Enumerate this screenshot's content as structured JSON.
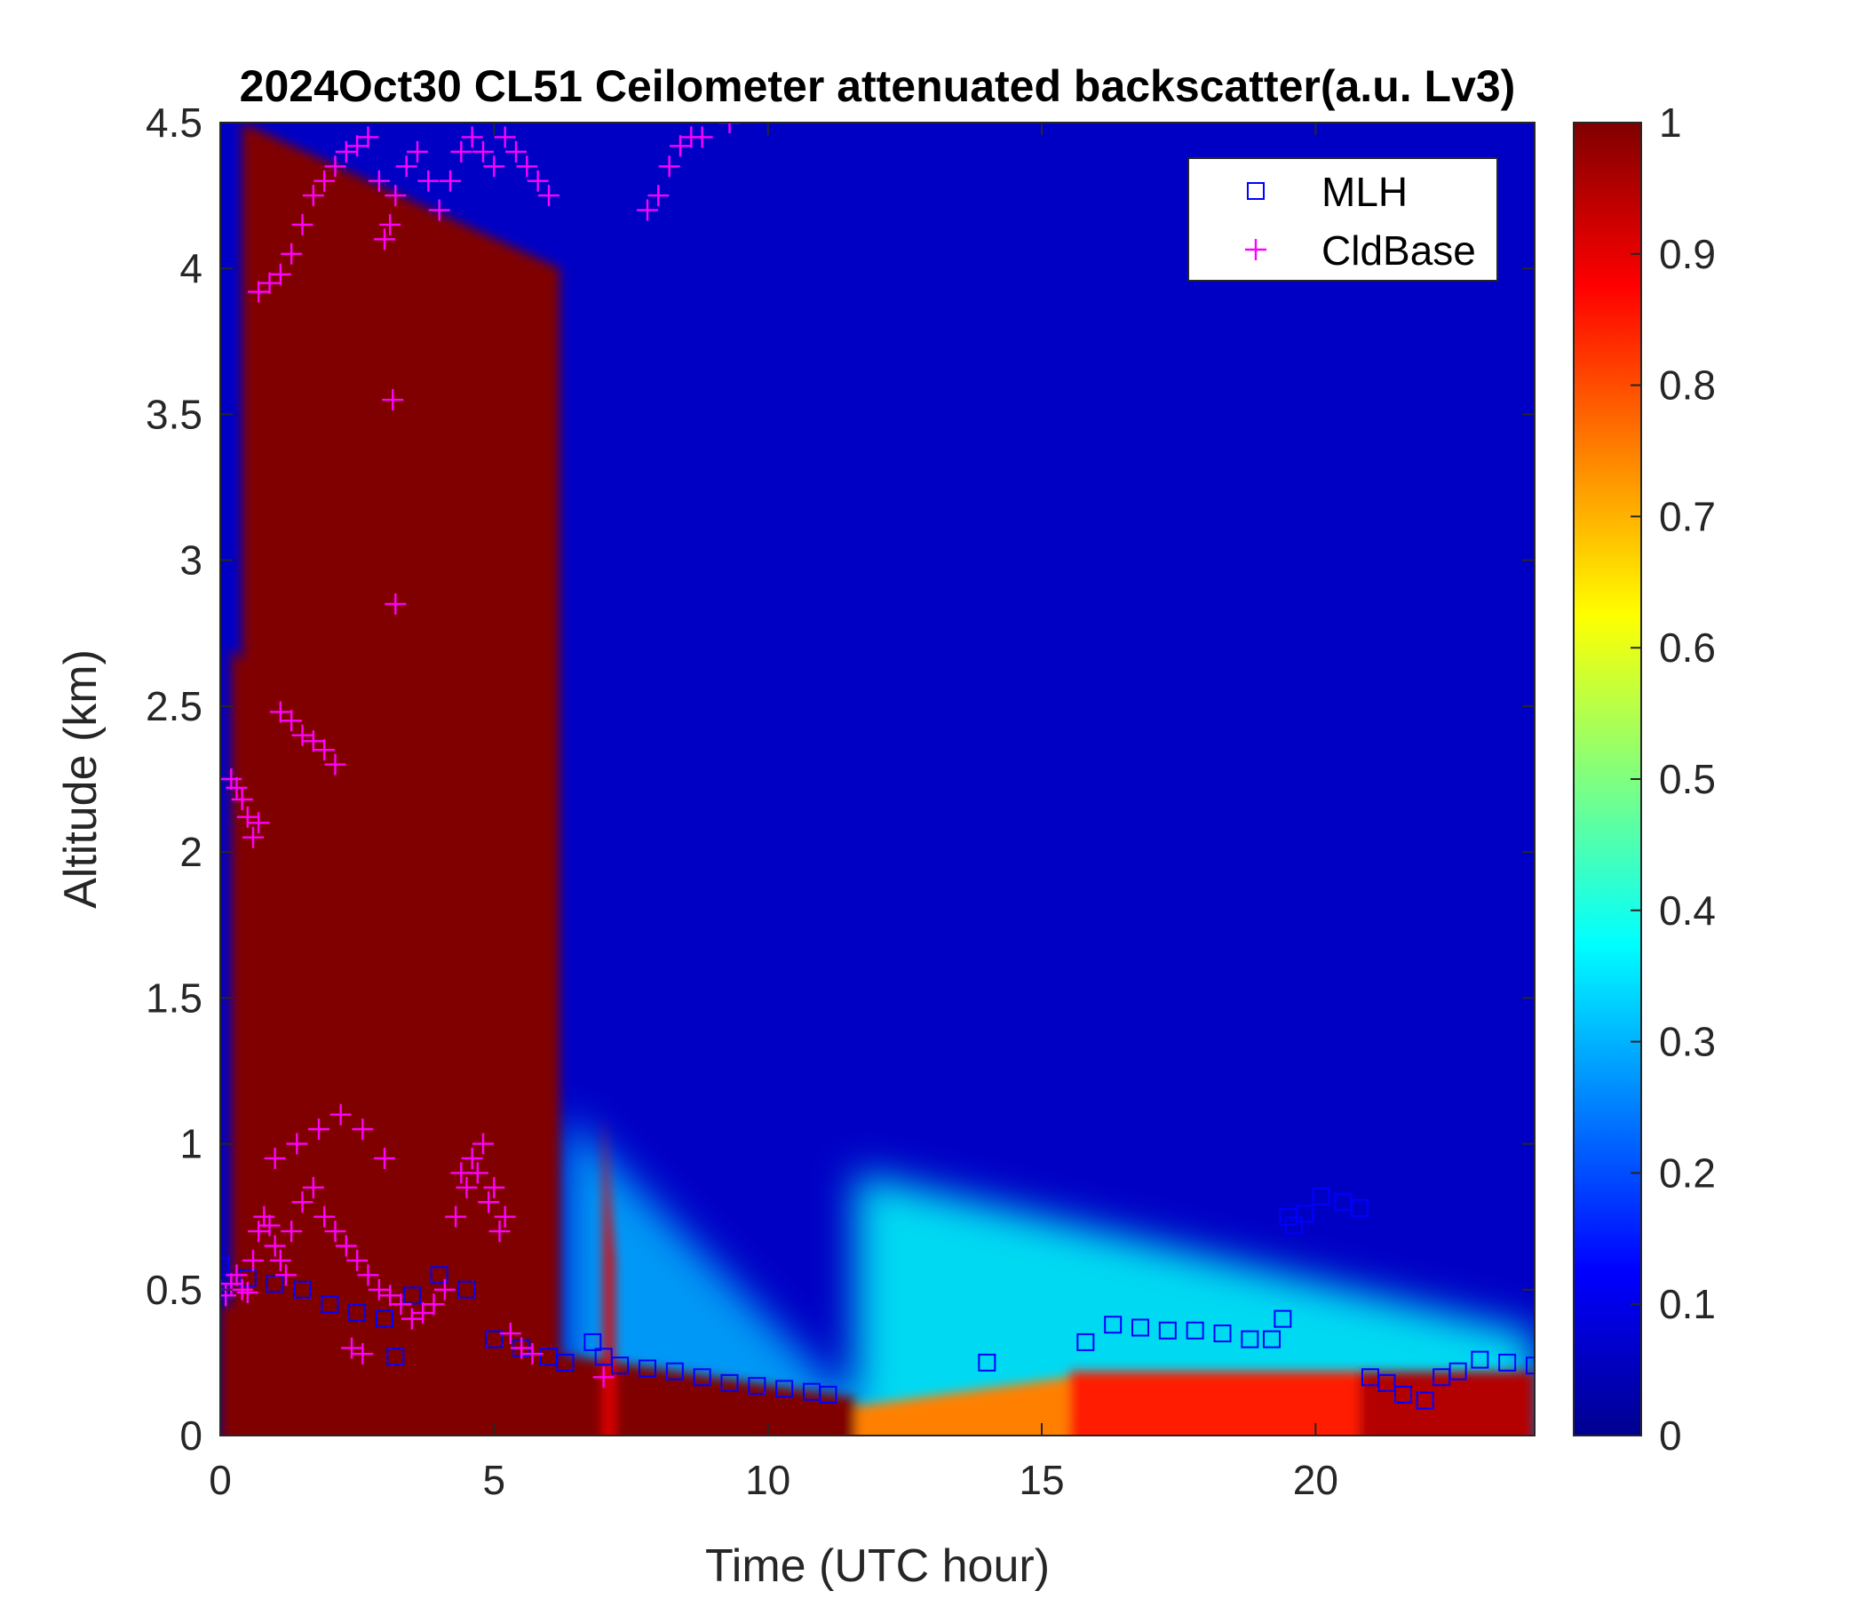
{
  "chart_data": {
    "type": "heatmap",
    "title": "2024Oct30 CL51 Ceilometer attenuated backscatter(a.u. Lv3)",
    "xlabel": "Time (UTC hour)",
    "ylabel": "Altitude (km)",
    "xlim": [
      0,
      24
    ],
    "ylim": [
      0,
      4.5
    ],
    "x_ticks": [
      0,
      5,
      10,
      15,
      20
    ],
    "y_ticks": [
      0,
      0.5,
      1,
      1.5,
      2,
      2.5,
      3,
      3.5,
      4,
      4.5
    ],
    "colorbar": {
      "colormap": "jet",
      "range": [
        0,
        1
      ],
      "ticks": [
        0,
        0.1,
        0.2,
        0.3,
        0.4,
        0.5,
        0.6,
        0.7,
        0.8,
        0.9,
        1
      ]
    },
    "legend": {
      "position": "top-right",
      "entries": [
        {
          "label": "MLH",
          "marker": "square",
          "color": "#0000ff"
        },
        {
          "label": "CldBase",
          "marker": "plus",
          "color": "#ff00ff"
        }
      ]
    },
    "features": [
      {
        "t": [
          0,
          11.6
        ],
        "h_top": [
          0.45,
          0.13
        ],
        "value": 1.0
      },
      {
        "t": [
          11.6,
          15.5
        ],
        "h_top": [
          0.1,
          0.2
        ],
        "value": 0.75
      },
      {
        "t": [
          15.5,
          20.8
        ],
        "h_top": [
          0.22,
          0.22
        ],
        "value": 0.85
      },
      {
        "t": [
          20.8,
          24
        ],
        "h_top": [
          0.22,
          0.22
        ],
        "value": 0.95
      },
      {
        "t": [
          6.3,
          11.6
        ],
        "h_top": [
          1.1,
          0.1
        ],
        "value": 0.3
      },
      {
        "t": [
          11.6,
          24
        ],
        "h_top": [
          0.9,
          0.35
        ],
        "value": 0.38
      },
      {
        "t": [
          0.4,
          6.2
        ],
        "h_top": [
          4.5,
          4.0
        ],
        "value": 1.0
      },
      {
        "t": [
          0.2,
          2.3
        ],
        "h_top": [
          2.7,
          2.2
        ],
        "value": 1.0
      },
      {
        "t": [
          3.3,
          3.5
        ],
        "h_top": [
          1.8,
          0.5
        ],
        "value": 1.0
      },
      {
        "t": [
          7.0,
          7.2
        ],
        "h_top": [
          1.1,
          0.6
        ],
        "value": 0.9
      }
    ],
    "series": [
      {
        "name": "MLH",
        "x": [
          0,
          0.5,
          1.0,
          1.5,
          2.0,
          2.5,
          3.0,
          3.2,
          3.5,
          4.0,
          4.5,
          5.0,
          5.5,
          6.0,
          6.3,
          6.8,
          7.0,
          7.3,
          7.8,
          8.3,
          8.8,
          9.3,
          9.8,
          10.3,
          10.8,
          11.1,
          14.0,
          15.8,
          16.3,
          16.8,
          17.3,
          17.8,
          18.3,
          18.8,
          19.2,
          19.4,
          19.5,
          19.6,
          19.8,
          20.1,
          20.5,
          20.8,
          21.0,
          21.3,
          21.6,
          22.0,
          22.3,
          22.6,
          23.0,
          23.5,
          24.0
        ],
        "y": [
          0.58,
          0.54,
          0.52,
          0.5,
          0.45,
          0.42,
          0.4,
          0.27,
          0.48,
          0.55,
          0.5,
          0.33,
          0.3,
          0.27,
          0.25,
          0.32,
          0.27,
          0.24,
          0.23,
          0.22,
          0.2,
          0.18,
          0.17,
          0.16,
          0.15,
          0.14,
          0.25,
          0.32,
          0.38,
          0.37,
          0.36,
          0.36,
          0.35,
          0.33,
          0.33,
          0.4,
          0.75,
          0.72,
          0.76,
          0.82,
          0.8,
          0.78,
          0.2,
          0.18,
          0.14,
          0.12,
          0.2,
          0.22,
          0.26,
          0.25,
          0.24
        ]
      },
      {
        "name": "CldBase",
        "x": [
          0.0,
          0.1,
          0.2,
          0.3,
          0.4,
          0.5,
          0.6,
          0.7,
          0.8,
          0.9,
          1.0,
          1.1,
          1.2,
          1.3,
          1.5,
          1.7,
          1.9,
          2.1,
          2.3,
          2.5,
          2.7,
          2.9,
          3.1,
          3.3,
          3.5,
          3.7,
          3.9,
          4.1,
          4.3,
          4.5,
          4.7,
          4.9,
          5.1,
          5.3,
          5.5,
          5.7,
          0.2,
          0.3,
          0.4,
          0.5,
          0.6,
          0.7,
          1.1,
          1.3,
          1.5,
          1.7,
          1.9,
          2.1,
          0.7,
          0.9,
          1.1,
          1.3,
          1.5,
          1.7,
          1.9,
          2.1,
          2.3,
          2.5,
          2.7,
          2.9,
          3.0,
          3.1,
          3.2,
          3.4,
          3.6,
          3.8,
          4.0,
          4.2,
          4.4,
          4.6,
          4.8,
          5.0,
          5.2,
          5.4,
          5.6,
          5.8,
          6.0,
          7.8,
          8.0,
          8.2,
          8.4,
          8.6,
          8.8,
          9.3,
          3.15,
          3.2,
          1.0,
          1.4,
          1.8,
          2.2,
          2.6,
          3.0,
          4.4,
          4.6,
          4.8,
          5.0,
          5.2,
          2.4,
          2.6,
          7.0
        ],
        "y": [
          0.5,
          0.48,
          0.52,
          0.55,
          0.5,
          0.49,
          0.6,
          0.7,
          0.75,
          0.72,
          0.65,
          0.6,
          0.55,
          0.7,
          0.8,
          0.85,
          0.75,
          0.7,
          0.65,
          0.6,
          0.55,
          0.5,
          0.48,
          0.45,
          0.4,
          0.42,
          0.45,
          0.5,
          0.75,
          0.85,
          0.9,
          0.8,
          0.7,
          0.35,
          0.3,
          0.28,
          2.25,
          2.22,
          2.18,
          2.12,
          2.05,
          2.1,
          2.48,
          2.45,
          2.4,
          2.38,
          2.35,
          2.3,
          3.92,
          3.95,
          3.98,
          4.05,
          4.15,
          4.25,
          4.3,
          4.35,
          4.4,
          4.42,
          4.45,
          4.3,
          4.1,
          4.15,
          4.25,
          4.35,
          4.4,
          4.3,
          4.2,
          4.3,
          4.4,
          4.45,
          4.4,
          4.35,
          4.45,
          4.4,
          4.35,
          4.3,
          4.25,
          4.2,
          4.25,
          4.35,
          4.42,
          4.45,
          4.45,
          4.5,
          3.55,
          2.85,
          0.95,
          1.0,
          1.05,
          1.1,
          1.05,
          0.95,
          0.9,
          0.95,
          1.0,
          0.85,
          0.75,
          0.3,
          0.28,
          0.2
        ]
      }
    ]
  }
}
